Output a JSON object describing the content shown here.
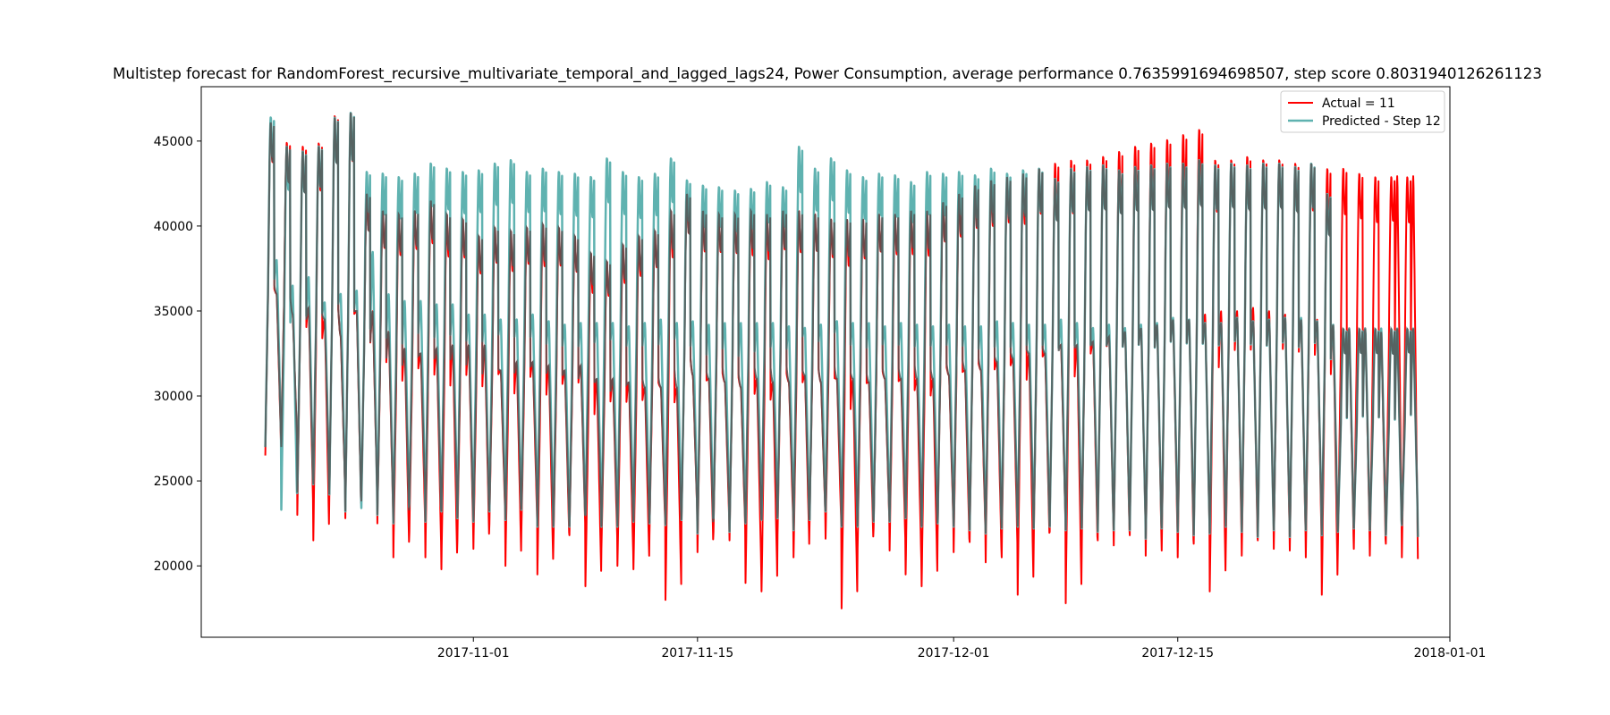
{
  "chart_data": {
    "type": "line",
    "title": "Multistep forecast for RandomForest_recursive_multivariate_temporal_and_lagged_lags24, Power Consumption, average performance 0.7635991694698507, step score 0.8031940126261123",
    "xlabel": "",
    "ylabel": "",
    "x_start": "2017-10-19",
    "x_end": "2017-12-30",
    "xlim": [
      "2017-10-15",
      "2018-01-01"
    ],
    "ylim": [
      15800,
      48200
    ],
    "x_ticks": [
      "2017-11-01",
      "2017-11-15",
      "2017-12-01",
      "2017-12-15",
      "2018-01-01"
    ],
    "y_ticks": [
      20000,
      25000,
      30000,
      35000,
      40000,
      45000
    ],
    "grid": false,
    "legend_position": "top-right",
    "series": [
      {
        "name": "Actual = 11",
        "color": "#ff0000",
        "daily_peaks": [
          36000,
          46200,
          34800,
          45000,
          35200,
          44800,
          34500,
          45000,
          33500,
          46600,
          35000,
          46800,
          35000,
          42000,
          33800,
          41000,
          32800,
          40800,
          32500,
          41000,
          32800,
          41600,
          33000,
          40800,
          33000,
          40500,
          33000,
          39500,
          31500,
          40000,
          32000,
          39800,
          32000,
          40000,
          31800,
          40200,
          31500,
          40000,
          31800,
          39500,
          31000,
          38500,
          31000,
          38000,
          30800,
          39000,
          30500,
          39500,
          30500,
          39800,
          30500,
          41000,
          31200,
          42000,
          31000,
          41000,
          30800,
          40800,
          30500,
          40800,
          31000,
          41000,
          30800,
          40800,
          30800,
          41000,
          31200,
          41000,
          30800,
          40800,
          31000,
          40500,
          31000,
          40500,
          30800,
          40500,
          31000,
          40800,
          31000,
          40800,
          31000,
          41000,
          31000,
          41000,
          31200,
          41500,
          31500,
          42000,
          31500,
          42500,
          32000,
          42800,
          32200,
          43000,
          32500,
          43200,
          32500,
          43500,
          33000,
          43800,
          33000,
          44000,
          33200,
          44000,
          33500,
          44200,
          33800,
          44500,
          34000,
          44800,
          34200,
          45000,
          34500,
          45200,
          34500,
          45500,
          34800,
          45800,
          35000,
          44000,
          35000,
          44000,
          35200,
          44200,
          35000,
          44000,
          34800,
          44000,
          34500,
          43800,
          34500,
          43800,
          34200,
          43500,
          34000,
          43500,
          34000,
          43200,
          33800,
          43000
        ],
        "daily_troughs": [
          26500,
          27000,
          23000,
          21500,
          24000,
          22800,
          23800,
          22500,
          20500,
          22000,
          20500,
          19800,
          21500,
          21000,
          22500,
          20000,
          22000,
          19500,
          21200,
          21800,
          18800,
          21000,
          20000,
          19800,
          21800,
          18000,
          22500,
          20800,
          22000,
          21500,
          19000,
          18500,
          21800,
          20500,
          22500,
          21600,
          17500,
          21000,
          22200,
          20900,
          19500,
          18800,
          22000,
          20800,
          21400,
          20200,
          20500,
          18300,
          21100,
          22000,
          17800,
          20800,
          21500,
          21200,
          21800,
          20600,
          20900,
          20500,
          21300,
          18500,
          20800,
          20600,
          21500,
          21000,
          20900,
          20500,
          18300,
          20800,
          21000,
          20600,
          21300,
          20500,
          20400,
          19800,
          20200,
          20000
        ],
        "color_note": "red series"
      },
      {
        "name": "Predicted - Step 12",
        "color": "#5fb2b0",
        "daily_peaks": [
          38000,
          46500,
          36500,
          44800,
          37000,
          44500,
          35500,
          44800,
          36000,
          46500,
          36200,
          46800,
          38500,
          43300,
          36000,
          43200,
          35600,
          43000,
          35600,
          43200,
          35400,
          43800,
          35400,
          43500,
          34800,
          43300,
          34800,
          43400,
          34500,
          43800,
          34500,
          44000,
          34800,
          43300,
          34400,
          43500,
          34200,
          43300,
          34300,
          43200,
          34300,
          43000,
          34300,
          44100,
          34100,
          43300,
          34300,
          43000,
          34500,
          43200,
          34300,
          44100,
          34400,
          42800,
          34200,
          42500,
          34300,
          42400,
          34300,
          42200,
          34300,
          42300,
          34300,
          42700,
          34100,
          42400,
          34000,
          44800,
          34200,
          43500,
          34400,
          44100,
          34300,
          43400,
          34300,
          43000,
          34100,
          43200,
          34300,
          43100,
          34200,
          42700,
          34100,
          43300,
          34200,
          43200,
          34100,
          43300,
          34100,
          43100,
          34400,
          43500,
          34300,
          43200,
          34200,
          43400,
          34200,
          43500,
          34500,
          42900,
          34300,
          43500,
          34000,
          43600,
          34200,
          43700,
          34000,
          43400,
          34200,
          43600,
          34300,
          43700,
          34600,
          43800,
          34500,
          43800,
          34300,
          44000,
          34300,
          43700,
          34600,
          43800,
          34400,
          43700,
          34500,
          43800,
          34600,
          43800,
          34600,
          43600,
          34400,
          43800,
          34200,
          42000,
          34000
        ],
        "daily_troughs": [
          27000,
          23300,
          24300,
          24800,
          24200,
          23200,
          23400,
          23000,
          22500,
          23700,
          22600,
          23200,
          22800,
          22600,
          23200,
          22700,
          23300,
          22300,
          22300,
          22300,
          23000,
          22300,
          22300,
          22600,
          22500,
          22400,
          22700,
          21900,
          22800,
          22000,
          22500,
          22700,
          22800,
          22100,
          22700,
          23200,
          22300,
          22300,
          22600,
          22600,
          22800,
          22300,
          22500,
          22300,
          22100,
          21900,
          22200,
          22300,
          22200,
          22300,
          22100,
          22200,
          22000,
          22100,
          22100,
          21600,
          22200,
          22000,
          21800,
          21900,
          22300,
          22000,
          21700,
          22100,
          21700,
          22100,
          21800,
          22000,
          22200,
          22100,
          21800,
          22400,
          21700,
          21900,
          21600,
          22200
        ]
      }
    ]
  }
}
